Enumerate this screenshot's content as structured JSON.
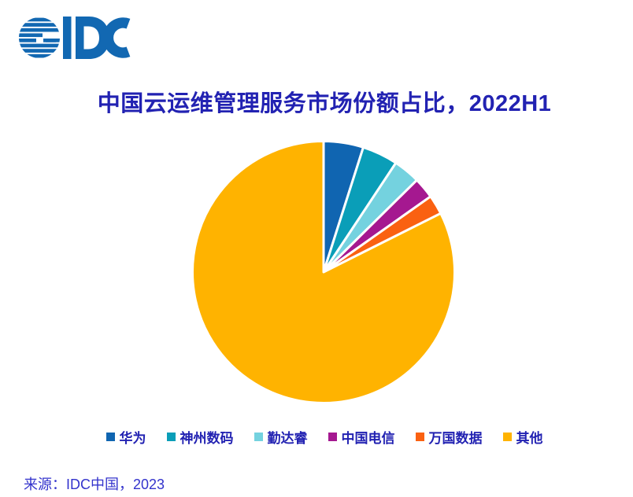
{
  "logo": {
    "text": "IDC",
    "color": "#1268B2"
  },
  "chart_data": {
    "type": "pie",
    "title": "中国云运维管理服务市场份额占比，2022H1",
    "categories": [
      "华为",
      "神州数码",
      "勤达睿",
      "中国电信",
      "万国数据",
      "其他"
    ],
    "values": [
      4.9,
      4.4,
      3.3,
      2.6,
      2.4,
      82.4
    ],
    "unit": "%",
    "colors": [
      "#1065B1",
      "#0A9EB8",
      "#74D2DF",
      "#A51890",
      "#FA6111",
      "#FFB300"
    ],
    "start_angle": "12 o'clock",
    "direction": "clockwise",
    "slice_separator_color": "#FFFFFF",
    "slice_separator_width": 3,
    "data_labels": false,
    "legend_position": "bottom"
  },
  "source": {
    "text": "来源：IDC中国，2023"
  },
  "style": {
    "title_color": "#2222B2",
    "legend_text_color": "#2222B2",
    "source_color": "#3333CC",
    "background": "#FFFFFF"
  }
}
